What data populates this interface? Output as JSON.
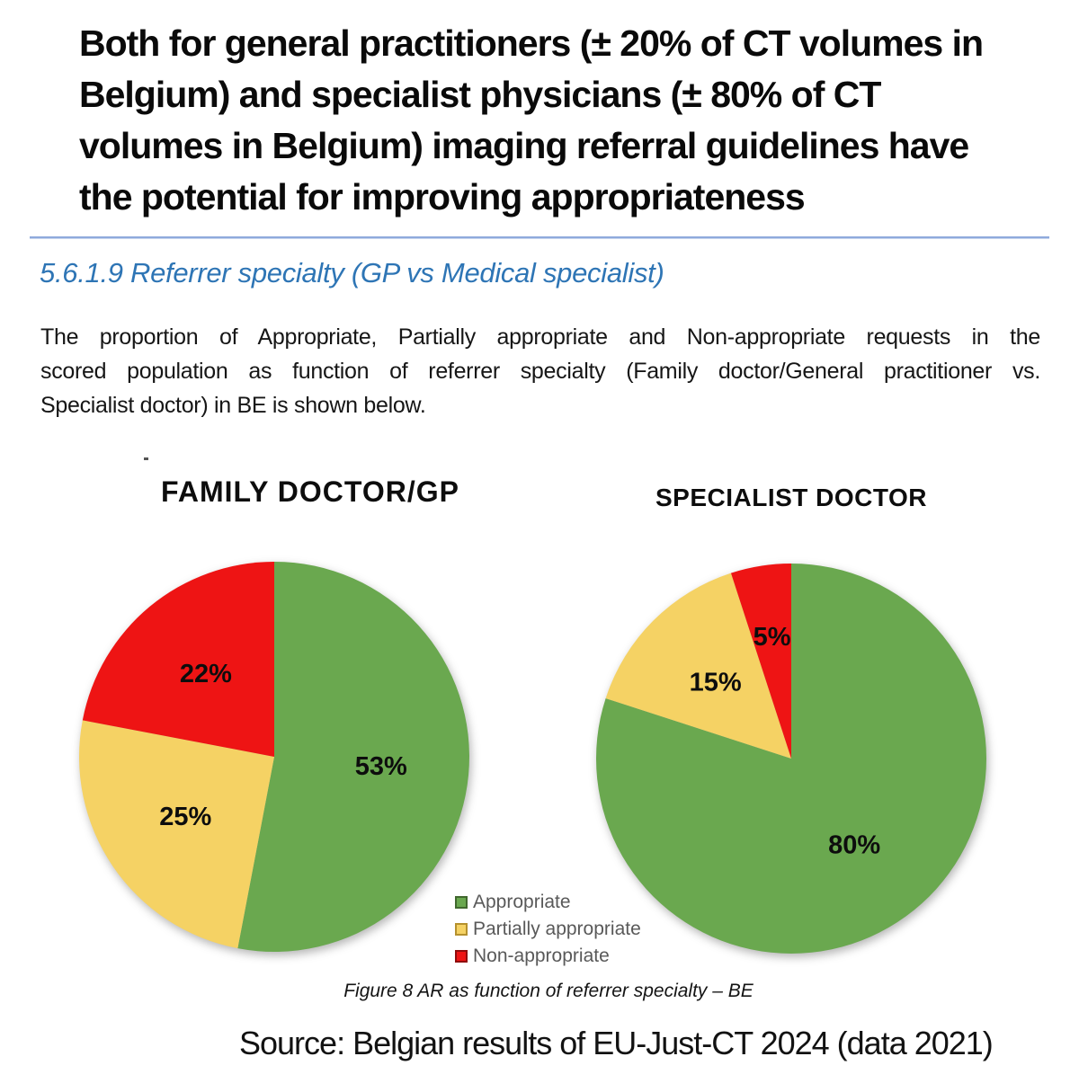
{
  "header": {
    "title_lines": [
      "Both for general practitioners (± 20% of CT volumes in",
      "Belgium) and specialist physicians (± 80% of CT",
      "volumes in Belgium) imaging referral guidelines have",
      "the potential for improving appropriateness"
    ],
    "section_heading": "5.6.1.9 Referrer specialty (GP vs Medical specialist)",
    "paragraph_lines": [
      "The proportion of Appropriate, Partially appropriate and Non-appropriate requests in the",
      "scored population as function of referrer specialty (Family doctor/General practitioner vs.",
      "Specialist doctor) in BE is shown below."
    ]
  },
  "figure": {
    "caption": "Figure 8 AR as function of referrer specialty – BE",
    "source": "Source: Belgian results of EU-Just-CT 2024 (data 2021)"
  },
  "legend": {
    "position": "between charts, lower area",
    "items": [
      {
        "label": "Appropriate",
        "color": "#6aa84f",
        "border": "#41682e"
      },
      {
        "label": "Partially appropriate",
        "color": "#f5d264",
        "border": "#b5912e"
      },
      {
        "label": "Non-appropriate",
        "color": "#ee1414",
        "border": "#8f0c0c"
      }
    ]
  },
  "colors": {
    "appropriate_green": "#6aa84f",
    "partially_yellow": "#f5d264",
    "non_appropriate_red": "#ee1414",
    "section_heading_blue": "#2e75b5",
    "rule_blue": "#8faadc",
    "legend_text_gray": "#595959"
  },
  "chart_data": [
    {
      "type": "pie",
      "title": "FAMILY DOCTOR/GP",
      "categories": [
        "Appropriate",
        "Partially appropriate",
        "Non-appropriate"
      ],
      "values": [
        53,
        25,
        22
      ],
      "data_labels": [
        "53%",
        "25%",
        "22%"
      ],
      "colors": [
        "#6aa84f",
        "#f5d264",
        "#ee1414"
      ],
      "start_angle_deg": 0,
      "direction": "clockwise"
    },
    {
      "type": "pie",
      "title": "SPECIALIST DOCTOR",
      "categories": [
        "Appropriate",
        "Partially appropriate",
        "Non-appropriate"
      ],
      "values": [
        80,
        15,
        5
      ],
      "data_labels": [
        "80%",
        "15%",
        "5%"
      ],
      "colors": [
        "#6aa84f",
        "#f5d264",
        "#ee1414"
      ],
      "start_angle_deg": 0,
      "direction": "clockwise"
    }
  ]
}
